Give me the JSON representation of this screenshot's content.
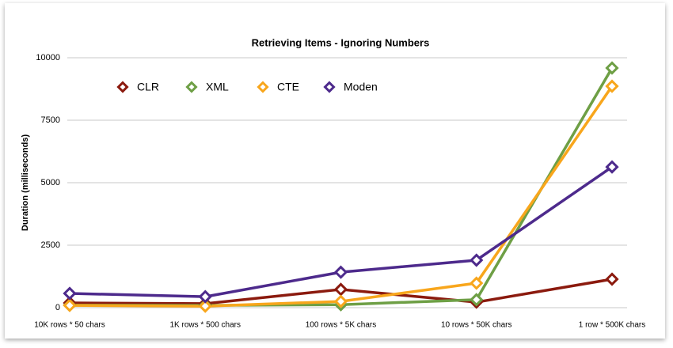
{
  "chart_data": {
    "type": "line",
    "title": "Retrieving Items - Ignoring Numbers",
    "y_label": "Duration (milliseconds)",
    "categories": [
      "10K rows * 50 chars",
      "1K rows * 500 chars",
      "100 rows * 5K chars",
      "10 rows * 50K chars",
      "1 row * 500K chars"
    ],
    "series": [
      {
        "name": "CLR",
        "color": "#8b1a0e",
        "values": [
          190,
          160,
          730,
          220,
          1140
        ]
      },
      {
        "name": "XML",
        "color": "#6e9f45",
        "values": [
          100,
          90,
          120,
          320,
          9590
        ]
      },
      {
        "name": "CTE",
        "color": "#f8a61c",
        "values": [
          90,
          60,
          250,
          980,
          8860
        ]
      },
      {
        "name": "Moden",
        "color": "#4d2a8c",
        "values": [
          570,
          440,
          1420,
          1900,
          5630
        ]
      }
    ],
    "ylim": [
      0,
      10000
    ],
    "yticks": [
      0,
      2500,
      5000,
      7500,
      10000
    ],
    "grid": true,
    "legend": "top-left"
  }
}
